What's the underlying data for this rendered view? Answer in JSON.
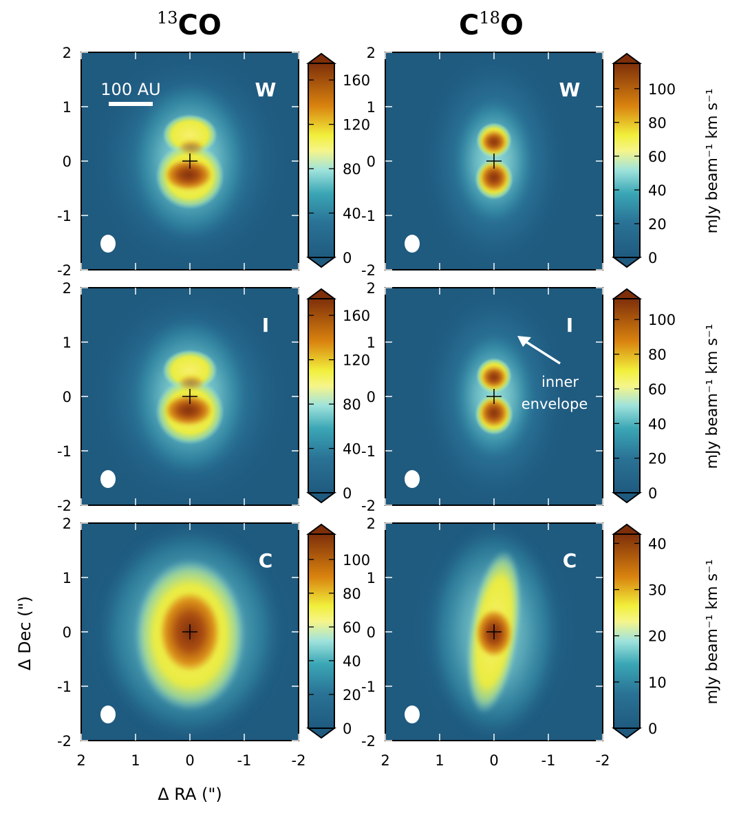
{
  "column_titles": [
    {
      "iso": "13",
      "species": "CO",
      "pre": ""
    },
    {
      "iso": "18",
      "species": "O",
      "pre": "C"
    }
  ],
  "chart_data": {
    "type": "heatmap",
    "description_note": "Grid of 6 integrated-intensity maps; rows W, I, C; columns 13CO and C18O",
    "xlabel": "Δ RA (\")",
    "ylabel": "Δ Dec (\")",
    "xlim": [
      2,
      -2
    ],
    "ylim": [
      -2,
      2
    ],
    "x_ticks": [
      "2",
      "1",
      "0",
      "-1",
      "-2"
    ],
    "y_ticks": [
      "-2",
      "-1",
      "0",
      "1",
      "2"
    ],
    "colorbar_label": "mJy beam$^{-1}$ km s$^{-1}$",
    "colorbar_label_text": "mJy beam⁻¹ km s⁻¹",
    "scalebar_label": "100 AU",
    "annotation": {
      "lines": [
        "inner",
        "envelope"
      ]
    },
    "colors": {
      "low": "#1f5a7f",
      "mid_low": "#3aa6b5",
      "cyan": "#9fe3dc",
      "yellow": "#f1ef3b",
      "orange": "#d9830f",
      "high": "#7e2f0a",
      "panel_text": "#ffffff"
    },
    "panels": [
      {
        "row": 0,
        "col": 0,
        "tag": "W",
        "vmin": 0,
        "vmax": 175,
        "colorbar_ticks": [
          0,
          40,
          80,
          120,
          160
        ],
        "shape": "hourglass",
        "width_scale": 1.0,
        "show_scalebar": true
      },
      {
        "row": 0,
        "col": 1,
        "tag": "W",
        "vmin": 0,
        "vmax": 115,
        "colorbar_ticks": [
          0,
          20,
          40,
          60,
          80,
          100
        ],
        "shape": "compact",
        "width_scale": 0.75
      },
      {
        "row": 1,
        "col": 0,
        "tag": "I",
        "vmin": 0,
        "vmax": 175,
        "colorbar_ticks": [
          0,
          40,
          80,
          120,
          160
        ],
        "shape": "hourglass",
        "width_scale": 1.0
      },
      {
        "row": 1,
        "col": 1,
        "tag": "I",
        "vmin": 0,
        "vmax": 112,
        "colorbar_ticks": [
          0,
          20,
          40,
          60,
          80,
          100
        ],
        "shape": "compact",
        "width_scale": 0.75,
        "show_annotation": true
      },
      {
        "row": 2,
        "col": 0,
        "tag": "C",
        "vmin": 0,
        "vmax": 115,
        "colorbar_ticks": [
          0,
          20,
          40,
          60,
          80,
          100
        ],
        "shape": "extended",
        "width_scale": 1.1
      },
      {
        "row": 2,
        "col": 1,
        "tag": "C",
        "vmin": 0,
        "vmax": 42,
        "colorbar_ticks": [
          0,
          10,
          20,
          30,
          40
        ],
        "shape": "filament",
        "width_scale": 0.85
      }
    ]
  }
}
